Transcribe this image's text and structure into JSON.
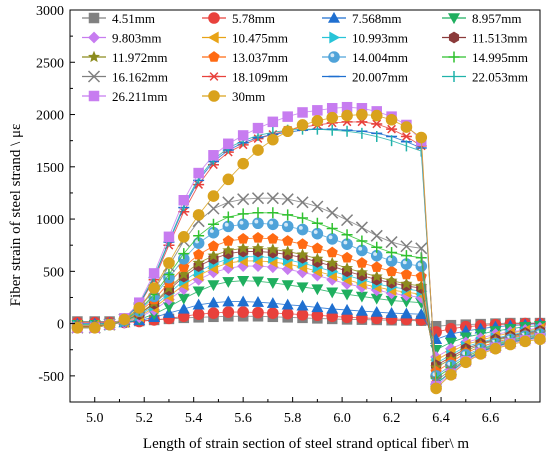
{
  "chart_data": {
    "type": "scatter",
    "title": "",
    "xlabel": "Length of strain section of steel strand optical fiber\\ m",
    "ylabel": "Fiber strain of steel strand \\ με",
    "xlim": [
      4.9,
      6.8
    ],
    "ylim": [
      -750,
      3000
    ],
    "xticks": [
      5.0,
      5.2,
      5.4,
      5.6,
      5.8,
      6.0,
      6.2,
      6.4,
      6.6
    ],
    "xtick_labels": [
      "5.0",
      "5.2",
      "5.4",
      "5.6",
      "5.8",
      "6.0",
      "6.2",
      "6.4",
      "6.6"
    ],
    "yticks": [
      -500,
      0,
      500,
      1000,
      1500,
      2000,
      2500,
      3000
    ],
    "ytick_labels": [
      "-500",
      "0",
      "500",
      "1000",
      "1500",
      "2000",
      "2500",
      "3000"
    ],
    "grid": false,
    "legend_position": "top",
    "x": [
      4.93,
      5.0,
      5.06,
      5.12,
      5.18,
      5.24,
      5.3,
      5.36,
      5.42,
      5.48,
      5.54,
      5.6,
      5.66,
      5.72,
      5.78,
      5.84,
      5.9,
      5.96,
      6.02,
      6.08,
      6.14,
      6.2,
      6.26,
      6.32,
      6.38,
      6.44,
      6.5,
      6.56,
      6.62,
      6.68,
      6.74,
      6.8
    ],
    "series": [
      {
        "name": "4.51mm",
        "marker": "square",
        "color": "#808080",
        "values": [
          20,
          20,
          20,
          20,
          25,
          35,
          45,
          55,
          60,
          65,
          70,
          70,
          70,
          65,
          60,
          55,
          50,
          45,
          40,
          38,
          35,
          32,
          30,
          28,
          -25,
          -15,
          -10,
          -5,
          0,
          5,
          5,
          5
        ]
      },
      {
        "name": "5.78mm",
        "marker": "circle",
        "color": "#e8413c",
        "values": [
          10,
          10,
          10,
          10,
          20,
          35,
          50,
          70,
          90,
          100,
          110,
          110,
          105,
          100,
          95,
          85,
          80,
          70,
          60,
          55,
          50,
          45,
          40,
          35,
          -80,
          -50,
          -30,
          -20,
          -10,
          -5,
          0,
          0
        ]
      },
      {
        "name": "7.568mm",
        "marker": "triangle-up",
        "color": "#1f6fd0",
        "values": [
          0,
          0,
          5,
          10,
          30,
          60,
          100,
          140,
          180,
          200,
          210,
          210,
          205,
          195,
          180,
          170,
          155,
          140,
          130,
          120,
          110,
          100,
          95,
          90,
          -150,
          -100,
          -70,
          -50,
          -30,
          -20,
          -10,
          0
        ]
      },
      {
        "name": "8.957mm",
        "marker": "triangle-down",
        "color": "#1faf5f",
        "values": [
          -10,
          -10,
          0,
          10,
          40,
          90,
          160,
          240,
          310,
          370,
          400,
          410,
          405,
          390,
          370,
          350,
          330,
          300,
          280,
          260,
          240,
          220,
          210,
          200,
          -250,
          -180,
          -130,
          -100,
          -70,
          -50,
          -30,
          -20
        ]
      },
      {
        "name": "9.803mm",
        "marker": "diamond",
        "color": "#c77cf0",
        "values": [
          -20,
          -20,
          -10,
          10,
          60,
          130,
          230,
          330,
          420,
          490,
          530,
          550,
          550,
          540,
          520,
          490,
          460,
          420,
          380,
          350,
          320,
          290,
          270,
          250,
          -320,
          -240,
          -180,
          -140,
          -100,
          -80,
          -60,
          -40
        ]
      },
      {
        "name": "10.475mm",
        "marker": "triangle-left",
        "color": "#e8a317",
        "values": [
          -20,
          -20,
          -10,
          15,
          70,
          150,
          260,
          370,
          460,
          530,
          580,
          600,
          600,
          590,
          570,
          540,
          500,
          460,
          420,
          380,
          350,
          320,
          300,
          280,
          -350,
          -270,
          -200,
          -160,
          -120,
          -90,
          -70,
          -50
        ]
      },
      {
        "name": "10.993mm",
        "marker": "triangle-right",
        "color": "#27c4d8",
        "values": [
          -25,
          -25,
          -10,
          20,
          80,
          170,
          290,
          410,
          500,
          570,
          620,
          640,
          640,
          630,
          610,
          580,
          540,
          500,
          460,
          420,
          380,
          350,
          330,
          310,
          -380,
          -300,
          -220,
          -180,
          -140,
          -110,
          -80,
          -60
        ]
      },
      {
        "name": "11.513mm",
        "marker": "hexagon",
        "color": "#8b3a3a",
        "values": [
          -25,
          -25,
          -10,
          25,
          90,
          190,
          320,
          450,
          550,
          620,
          670,
          690,
          690,
          680,
          660,
          630,
          590,
          550,
          500,
          460,
          420,
          390,
          360,
          340,
          -400,
          -320,
          -240,
          -190,
          -150,
          -120,
          -90,
          -70
        ]
      },
      {
        "name": "11.972mm",
        "marker": "star",
        "color": "#8c8c1e",
        "values": [
          -30,
          -30,
          -10,
          25,
          95,
          200,
          340,
          470,
          580,
          650,
          700,
          720,
          720,
          710,
          690,
          660,
          620,
          580,
          530,
          490,
          450,
          410,
          380,
          360,
          -420,
          -340,
          -260,
          -200,
          -160,
          -130,
          -100,
          -80
        ]
      },
      {
        "name": "13.037mm",
        "marker": "pentagon",
        "color": "#ff6a13",
        "values": [
          -30,
          -30,
          -10,
          30,
          110,
          230,
          390,
          540,
          660,
          740,
          790,
          810,
          820,
          810,
          790,
          760,
          720,
          680,
          630,
          580,
          540,
          500,
          470,
          450,
          -460,
          -370,
          -280,
          -220,
          -180,
          -140,
          -110,
          -90
        ]
      },
      {
        "name": "14.004mm",
        "marker": "sphere",
        "color": "#4fa3d9",
        "values": [
          -35,
          -35,
          -10,
          30,
          120,
          260,
          440,
          620,
          770,
          870,
          930,
          950,
          960,
          950,
          930,
          900,
          860,
          810,
          760,
          700,
          650,
          600,
          570,
          550,
          -500,
          -400,
          -300,
          -240,
          -190,
          -150,
          -120,
          -100
        ]
      },
      {
        "name": "14.995mm",
        "marker": "plus",
        "color": "#2fc12f",
        "values": [
          -35,
          -35,
          -10,
          35,
          130,
          280,
          470,
          670,
          840,
          950,
          1020,
          1050,
          1060,
          1060,
          1040,
          1010,
          960,
          910,
          850,
          790,
          730,
          680,
          650,
          630,
          -520,
          -420,
          -320,
          -250,
          -200,
          -160,
          -130,
          -110
        ]
      },
      {
        "name": "16.162mm",
        "marker": "cross",
        "color": "#7f7f7f",
        "values": [
          -40,
          -40,
          -10,
          40,
          150,
          320,
          550,
          790,
          980,
          1100,
          1160,
          1190,
          1200,
          1200,
          1190,
          1160,
          1120,
          1060,
          990,
          920,
          840,
          780,
          740,
          720,
          -550,
          -440,
          -340,
          -260,
          -210,
          -170,
          -140,
          -120
        ]
      },
      {
        "name": "18.109mm",
        "marker": "asterisk",
        "color": "#e8413c",
        "values": [
          -40,
          -40,
          -10,
          45,
          180,
          420,
          750,
          1070,
          1330,
          1520,
          1640,
          1710,
          1770,
          1810,
          1850,
          1880,
          1900,
          1920,
          1930,
          1930,
          1910,
          1860,
          1790,
          1700,
          -580,
          -460,
          -350,
          -270,
          -220,
          -180,
          -150,
          -130
        ]
      },
      {
        "name": "20.007mm",
        "marker": "dash",
        "color": "#1f6fd0",
        "values": [
          -40,
          -40,
          -10,
          45,
          185,
          440,
          780,
          1110,
          1370,
          1550,
          1660,
          1730,
          1780,
          1810,
          1830,
          1850,
          1860,
          1860,
          1850,
          1840,
          1820,
          1790,
          1740,
          1680,
          -580,
          -460,
          -350,
          -270,
          -220,
          -180,
          -150,
          -130
        ]
      },
      {
        "name": "22.053mm",
        "marker": "vbar",
        "color": "#20b2aa",
        "values": [
          -40,
          -40,
          -10,
          45,
          185,
          450,
          790,
          1130,
          1390,
          1570,
          1680,
          1750,
          1800,
          1830,
          1850,
          1860,
          1860,
          1850,
          1840,
          1820,
          1790,
          1750,
          1700,
          1650,
          -580,
          -460,
          -350,
          -270,
          -220,
          -180,
          -150,
          -130
        ]
      },
      {
        "name": "26.211mm",
        "marker": "square",
        "color": "#c77cf0",
        "values": [
          -40,
          -40,
          -10,
          50,
          200,
          480,
          830,
          1180,
          1440,
          1610,
          1720,
          1800,
          1870,
          1930,
          1980,
          2020,
          2040,
          2060,
          2070,
          2060,
          2030,
          1980,
          1900,
          1750,
          -600,
          -480,
          -360,
          -280,
          -230,
          -190,
          -160,
          -140
        ]
      },
      {
        "name": "30mm",
        "marker": "circle",
        "color": "#d9a21c",
        "values": [
          -40,
          -40,
          -10,
          40,
          150,
          340,
          580,
          830,
          1040,
          1220,
          1380,
          1530,
          1660,
          1760,
          1840,
          1900,
          1940,
          1970,
          1990,
          2000,
          1990,
          1950,
          1880,
          1780,
          -620,
          -490,
          -370,
          -290,
          -240,
          -200,
          -170,
          -150
        ]
      }
    ]
  }
}
